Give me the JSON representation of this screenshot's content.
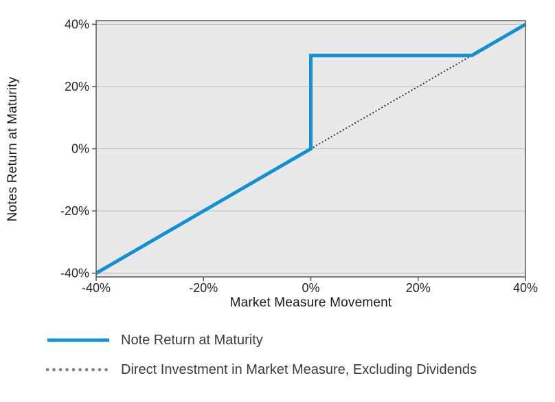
{
  "chart_data": {
    "type": "line",
    "title": "",
    "xlabel": "Market Measure Movement",
    "ylabel": "Notes Return at Maturity",
    "xlim": [
      -40,
      40
    ],
    "ylim": [
      -40,
      40
    ],
    "x_tick_values": [
      -40,
      -20,
      0,
      20,
      40
    ],
    "x_tick_labels": [
      "-40%",
      "-20%",
      "0%",
      "20%",
      "40%"
    ],
    "y_tick_values": [
      -40,
      -20,
      0,
      20,
      40
    ],
    "y_tick_labels": [
      "-40%",
      "-20%",
      "0%",
      "20%",
      "40%"
    ],
    "grid": "horizontal",
    "legend_position": "bottom-left",
    "plot_bg_color": "#E9E9E9",
    "gridline_color": "#BDBDBD",
    "border_color": "#595959",
    "series": [
      {
        "id": "note-return",
        "name": "Note Return at Maturity",
        "style": "solid",
        "color": "#1190D2",
        "points": [
          [
            -40,
            -40
          ],
          [
            0,
            0
          ],
          [
            0,
            30
          ],
          [
            30,
            30
          ],
          [
            40,
            40
          ]
        ]
      },
      {
        "id": "direct-investment",
        "name": "Direct Investment in Market Measure, Excluding Dividends",
        "style": "dotted",
        "color": "#333333",
        "legend_color": "#8C7A68",
        "points": [
          [
            -40,
            -40
          ],
          [
            40,
            40
          ]
        ]
      }
    ]
  }
}
